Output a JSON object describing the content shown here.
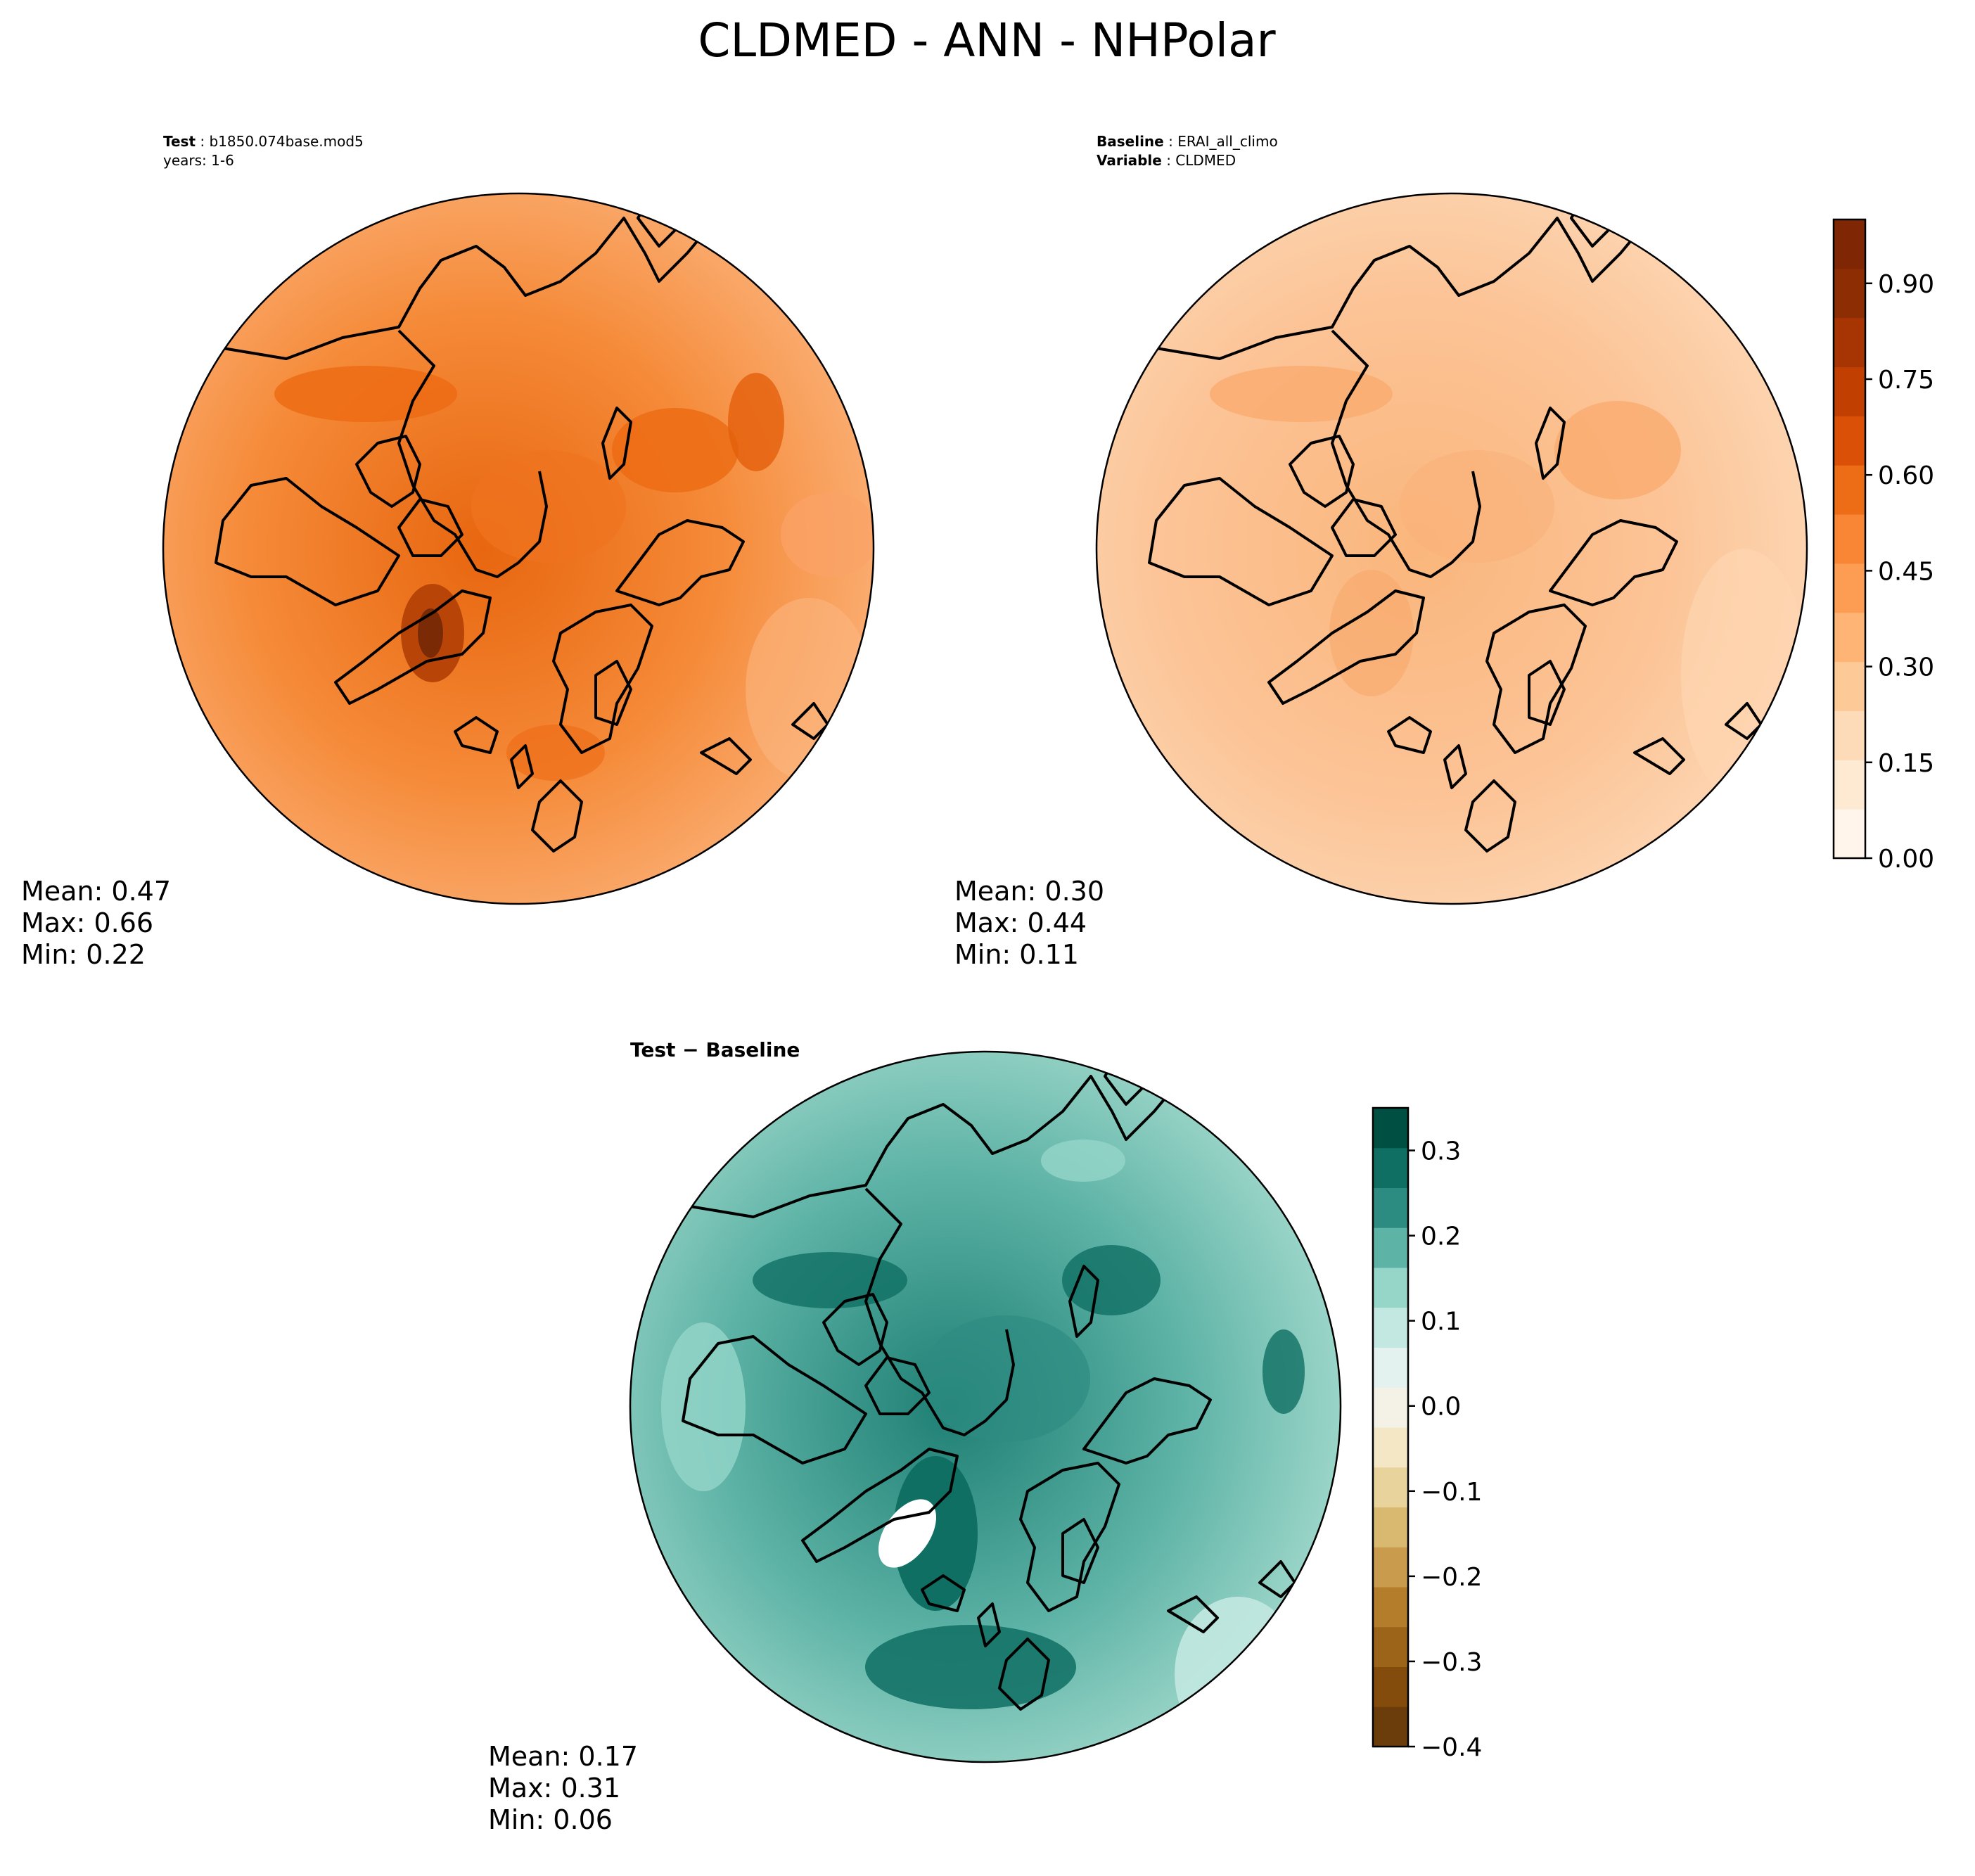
{
  "figure_title": "CLDMED - ANN - NHPolar",
  "panels": {
    "test": {
      "label_key": "Test",
      "label_value": "b1850.074base.mod5",
      "line2": "years: 1-6",
      "stats": {
        "mean": "Mean:  0.47",
        "max": "Max:  0.66",
        "min": "Min:  0.22"
      }
    },
    "baseline": {
      "label_key": "Baseline",
      "label_value": "ERAI_all_climo",
      "var_key": "Variable",
      "var_value": "CLDMED",
      "stats": {
        "mean": "Mean:  0.30",
        "max": "Max:  0.44",
        "min": "Min:  0.11"
      }
    },
    "diff": {
      "label": "Test − Baseline",
      "stats": {
        "mean": "Mean:  0.17",
        "max": "Max:  0.31",
        "min": "Min:  0.06"
      }
    }
  },
  "chart_data": [
    {
      "type": "heatmap",
      "title": "Test: b1850.074base.mod5",
      "projection": "north-polar-stereographic",
      "mean": 0.47,
      "max": 0.66,
      "min": 0.22,
      "colormap": "Oranges"
    },
    {
      "type": "heatmap",
      "title": "Baseline: ERAI_all_climo",
      "projection": "north-polar-stereographic",
      "mean": 0.3,
      "max": 0.44,
      "min": 0.11,
      "colormap": "Oranges",
      "colorbar": {
        "range": [
          0.0,
          1.0
        ],
        "ticks": [
          0.0,
          0.15,
          0.3,
          0.45,
          0.6,
          0.75,
          0.9
        ],
        "tick_labels": [
          "0.00",
          "0.15",
          "0.30",
          "0.45",
          "0.60",
          "0.75",
          "0.90"
        ],
        "levels": 20,
        "colors": [
          "#fff5eb",
          "#fee9d3",
          "#fddbb8",
          "#fdc997",
          "#fdb475",
          "#fd9d53",
          "#f88634",
          "#ed6c16",
          "#db5007",
          "#c23f02",
          "#a73503",
          "#8c2d04",
          "#7f2704"
        ]
      }
    },
    {
      "type": "heatmap",
      "title": "Test − Baseline",
      "projection": "north-polar-stereographic",
      "mean": 0.17,
      "max": 0.31,
      "min": 0.06,
      "colormap": "BrBG",
      "colorbar": {
        "range": [
          -0.4,
          0.35
        ],
        "ticks": [
          -0.4,
          -0.3,
          -0.2,
          -0.1,
          0.0,
          0.1,
          0.2,
          0.3
        ],
        "tick_labels": [
          "−0.4",
          "−0.3",
          "−0.2",
          "−0.1",
          "0.0",
          "0.1",
          "0.2",
          "0.3"
        ],
        "colors": [
          "#6b3d0a",
          "#844c0c",
          "#9c6419",
          "#b47d2c",
          "#c99b4c",
          "#d9b870",
          "#e8d39c",
          "#f3e7c6",
          "#f4f1e6",
          "#e3f2ef",
          "#c2e8e1",
          "#95d6c9",
          "#5db3a6",
          "#2d8c82",
          "#0f6f63",
          "#004f43"
        ]
      }
    }
  ]
}
